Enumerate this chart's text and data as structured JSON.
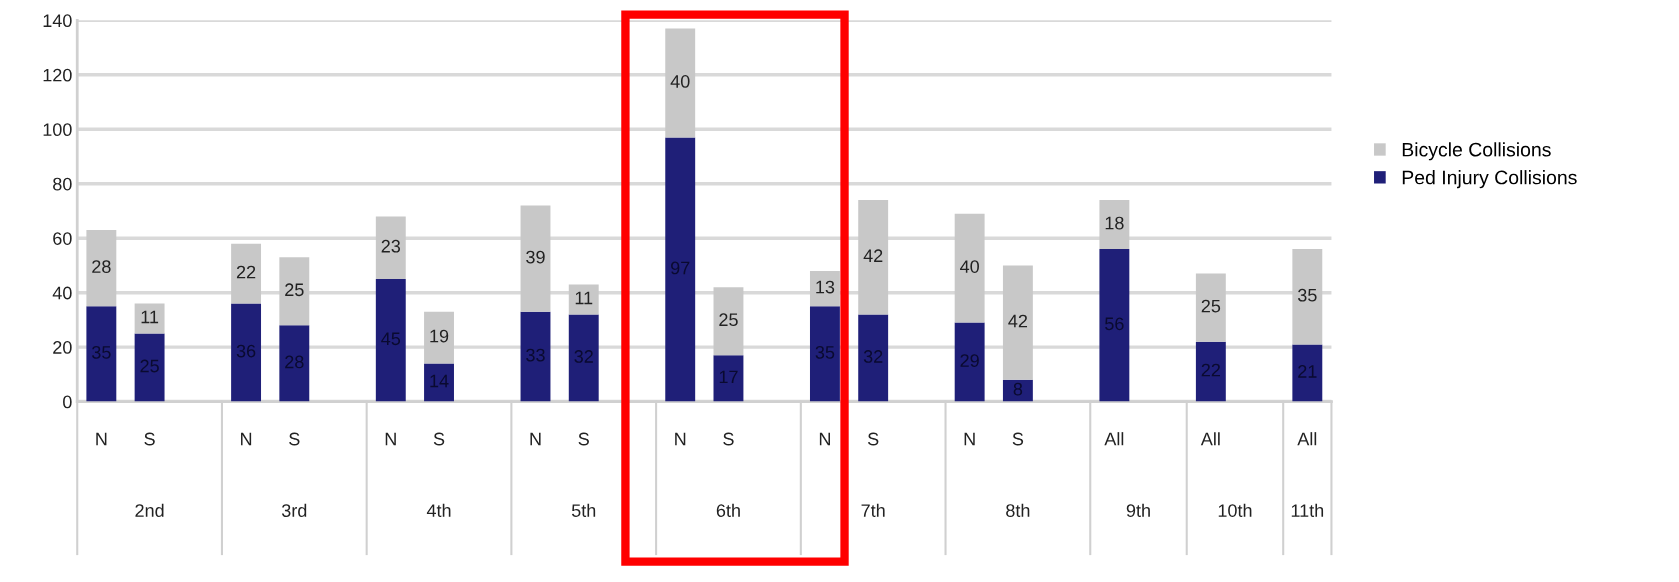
{
  "chart_data": {
    "type": "bar",
    "stacked": true,
    "data_labels": true,
    "grid": "y",
    "legend": "right",
    "categories": [
      "N",
      "S",
      null,
      "N",
      "S",
      null,
      "N",
      "S",
      null,
      "N",
      "S",
      null,
      "N",
      "S",
      null,
      "N",
      "S",
      null,
      "N",
      "S",
      null,
      "All",
      null,
      "All",
      null,
      "All"
    ],
    "series": [
      {
        "name": "Ped Injury Collisions",
        "color": "#1f1f78",
        "values": [
          35,
          25,
          null,
          36,
          28,
          null,
          45,
          14,
          null,
          33,
          32,
          null,
          97,
          17,
          null,
          35,
          32,
          null,
          29,
          8,
          null,
          56,
          null,
          22,
          null,
          21
        ]
      },
      {
        "name": "Bicycle Collisions",
        "color": "#c8c8c8",
        "values": [
          28,
          11,
          null,
          22,
          25,
          null,
          23,
          19,
          null,
          39,
          11,
          null,
          40,
          25,
          null,
          13,
          42,
          null,
          40,
          42,
          null,
          18,
          null,
          25,
          null,
          35
        ]
      }
    ],
    "annotations": [
      "2nd",
      "3rd",
      "4th",
      "5th",
      "6th",
      "7th",
      "8th",
      "9th",
      "10th",
      "11th"
    ],
    "ylim": [
      0,
      140
    ],
    "yticks": [
      0,
      20,
      40,
      60,
      80,
      100,
      120,
      140
    ]
  }
}
